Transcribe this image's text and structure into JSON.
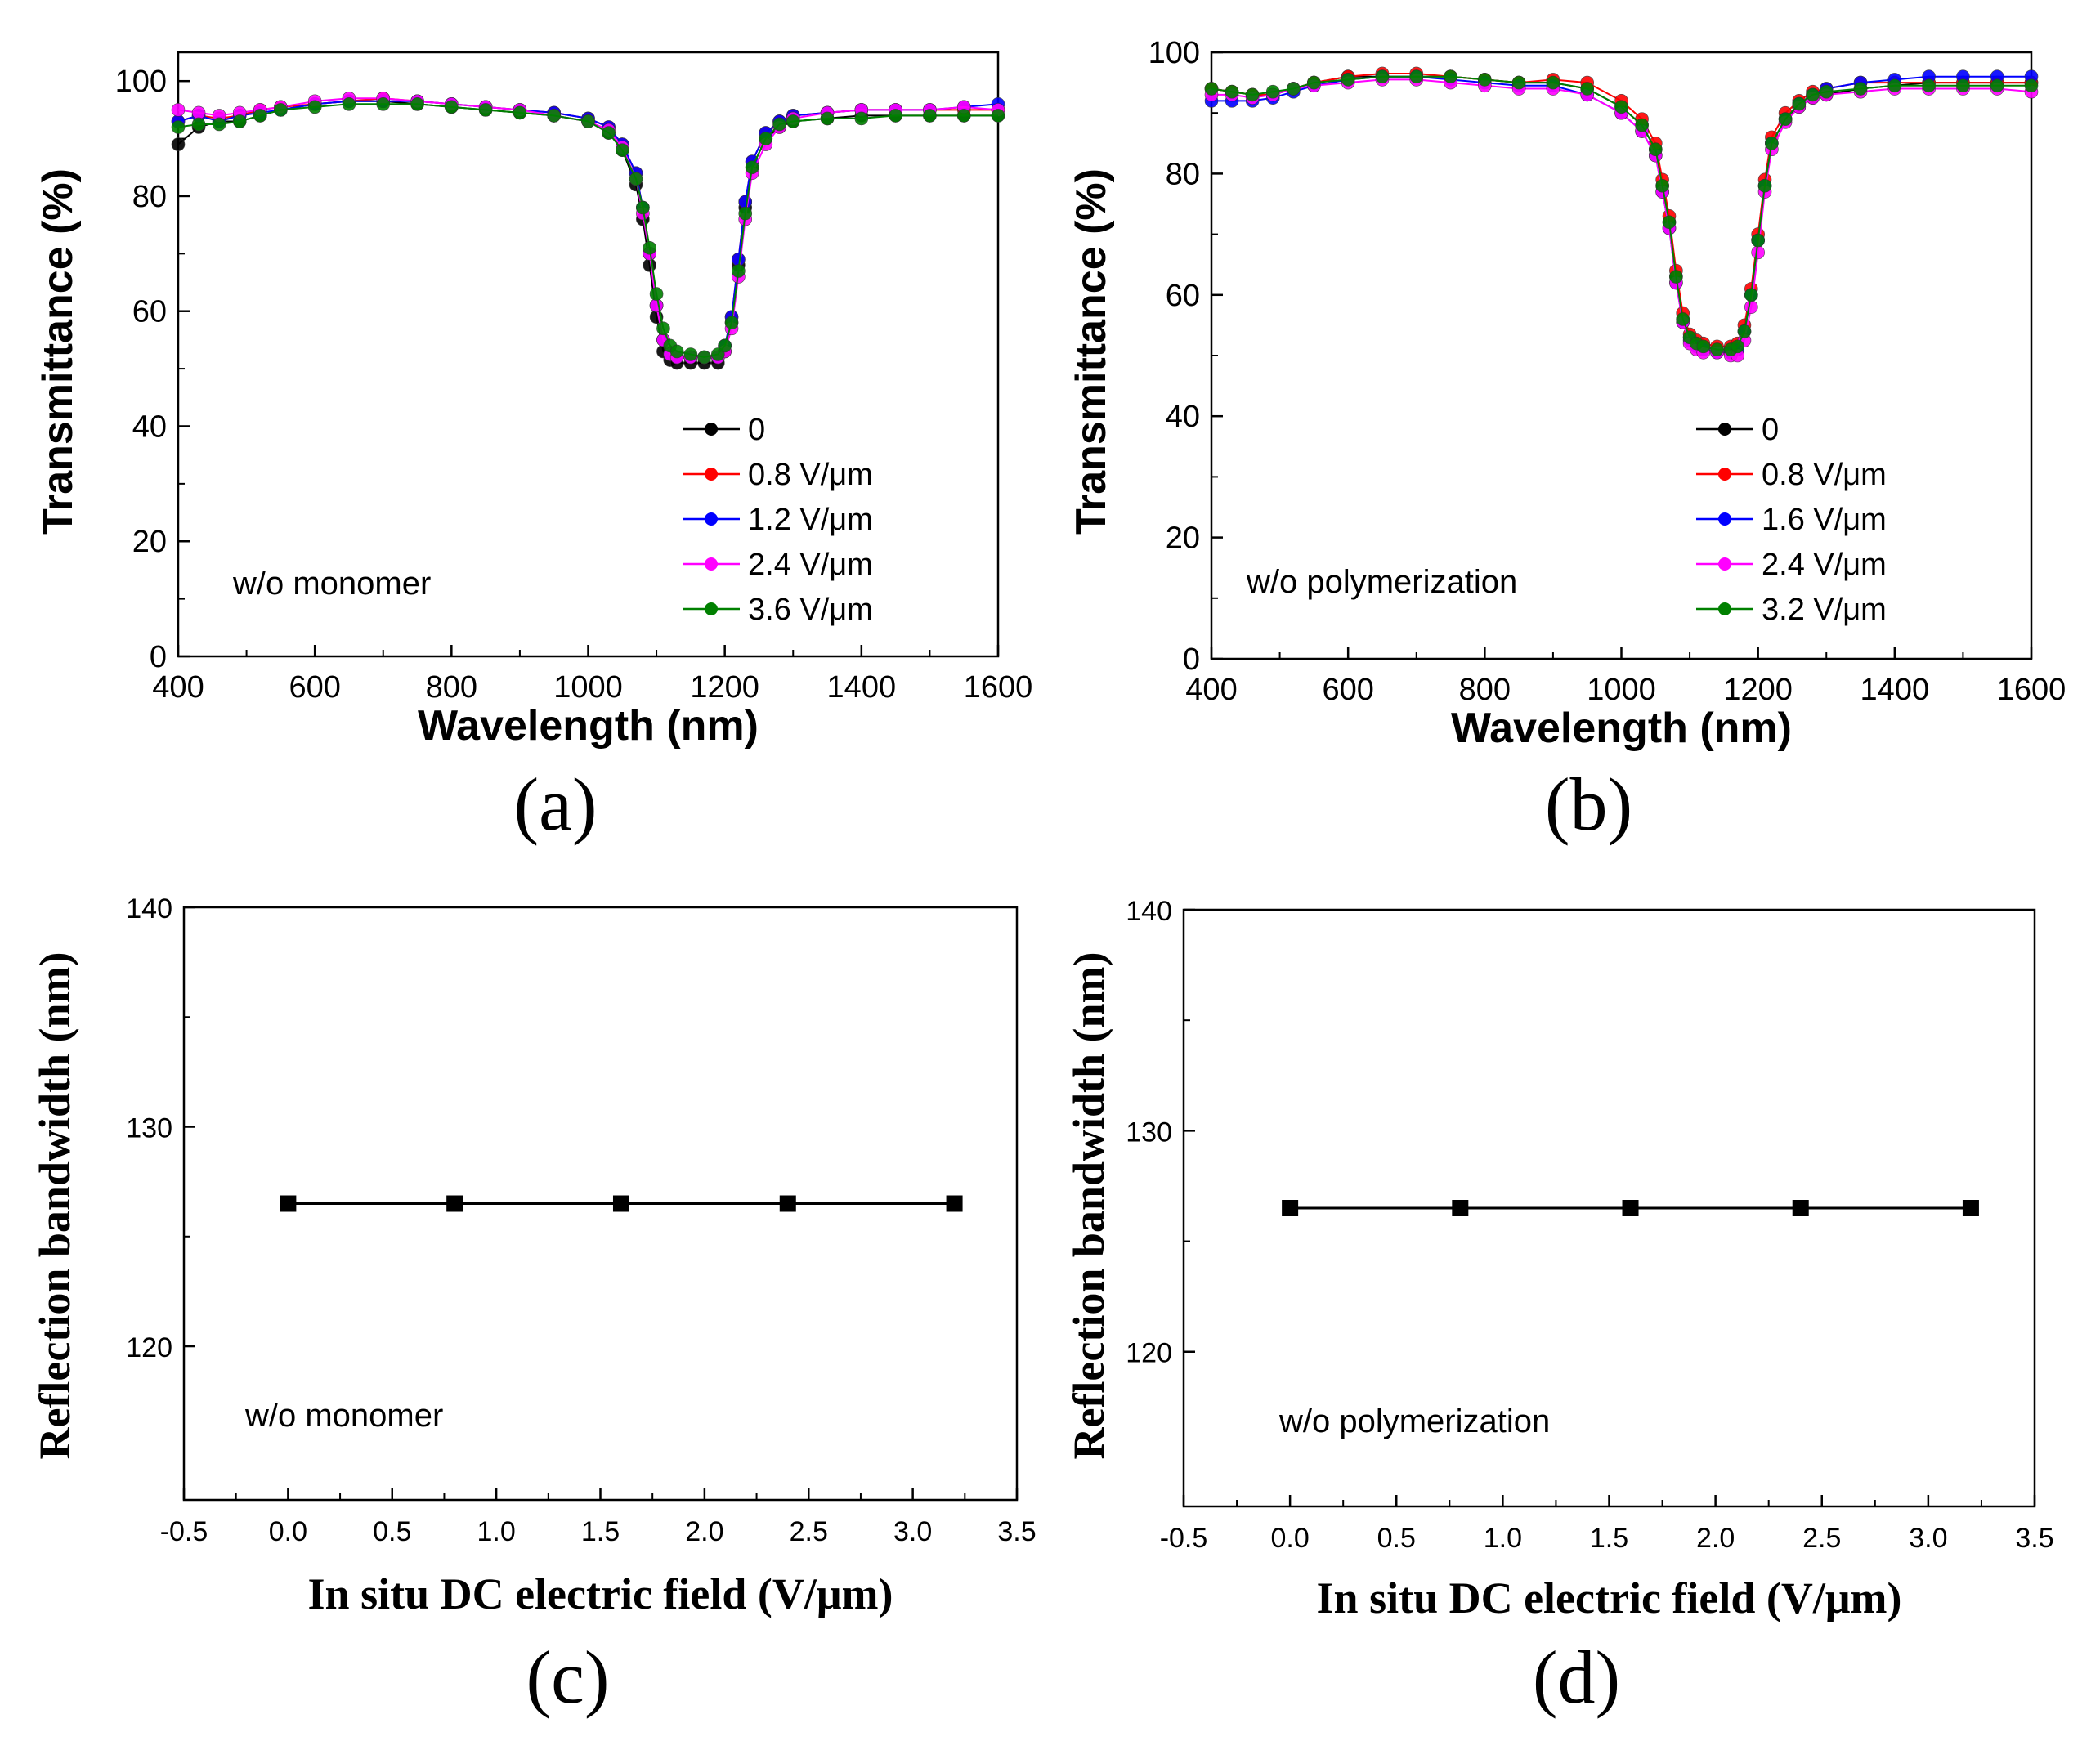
{
  "colors": {
    "axis": "#000000",
    "series": [
      "#000000",
      "#ff0000",
      "#0000ff",
      "#ff00ff",
      "#008000"
    ]
  },
  "chart_data": [
    {
      "id": "a",
      "type": "line",
      "panel_label": "(a)",
      "xlabel": "Wavelength (nm)",
      "ylabel": "Transmittance (%)",
      "xlim": [
        400,
        1600
      ],
      "ylim": [
        0,
        105
      ],
      "xticks": [
        400,
        600,
        800,
        1000,
        1200,
        1400,
        1600
      ],
      "yticks": [
        0,
        20,
        40,
        60,
        80,
        100
      ],
      "tick_labels_x": [
        "400",
        "600",
        "800",
        "1000",
        "1200",
        "1400",
        "1600"
      ],
      "tick_labels_y": [
        "0",
        "20",
        "40",
        "60",
        "80",
        "100"
      ],
      "annotation": "w/o monomer",
      "legend_position": "lower-right",
      "marker": "circle",
      "x": [
        400,
        430,
        460,
        490,
        520,
        550,
        600,
        650,
        700,
        750,
        800,
        850,
        900,
        950,
        1000,
        1030,
        1050,
        1070,
        1080,
        1090,
        1100,
        1110,
        1120,
        1130,
        1150,
        1170,
        1190,
        1200,
        1210,
        1220,
        1230,
        1240,
        1260,
        1280,
        1300,
        1350,
        1400,
        1450,
        1500,
        1550,
        1600
      ],
      "series": [
        {
          "name": "0",
          "values": [
            89,
            92,
            93,
            93,
            94,
            95,
            96,
            96.5,
            96.5,
            96,
            95.5,
            95,
            94.5,
            94,
            93,
            91,
            88,
            82,
            76,
            68,
            59,
            53,
            51.5,
            51,
            51,
            51,
            51,
            53,
            58,
            68,
            78,
            85,
            90,
            92,
            93,
            93.5,
            94,
            94,
            94,
            94,
            94
          ]
        },
        {
          "name": "0.8 V/μm",
          "values": [
            93,
            94,
            93.5,
            94,
            95,
            95.5,
            96,
            96.5,
            97,
            96.5,
            96,
            95.5,
            95,
            94.5,
            93.5,
            92,
            89,
            84,
            78,
            70,
            61,
            55,
            52.5,
            52,
            52,
            52,
            52,
            54,
            59,
            69,
            79,
            86,
            91,
            93,
            94,
            94.5,
            95,
            95,
            95,
            95,
            95
          ]
        },
        {
          "name": "1.2 V/μm",
          "values": [
            93,
            94,
            93,
            94,
            94.5,
            95,
            96,
            96.5,
            96.5,
            96.5,
            96,
            95.5,
            95,
            94.5,
            93.5,
            92,
            89,
            84,
            78,
            70,
            61,
            55,
            52.5,
            52,
            52,
            52,
            52,
            54,
            59,
            69,
            79,
            86,
            91,
            93,
            94,
            94.5,
            95,
            95,
            95,
            95.5,
            96
          ]
        },
        {
          "name": "2.4 V/μm",
          "values": [
            95,
            94.5,
            94,
            94.5,
            95,
            95.5,
            96.5,
            97,
            97,
            96.5,
            96,
            95.5,
            95,
            94,
            93,
            91.5,
            88.5,
            83,
            77,
            70,
            61,
            55,
            52.5,
            52,
            52,
            52,
            52,
            53,
            57,
            66,
            76,
            84,
            89,
            92,
            93.5,
            94.5,
            95,
            95,
            95,
            95.5,
            95
          ]
        },
        {
          "name": "3.6 V/μm",
          "values": [
            92,
            92.5,
            92.5,
            93,
            94,
            95,
            95.5,
            96,
            96,
            96,
            95.5,
            95,
            94.5,
            94,
            93,
            91,
            88,
            83,
            78,
            71,
            63,
            57,
            54,
            53,
            52.5,
            52,
            52.5,
            54,
            58,
            67,
            77,
            85,
            90,
            92.5,
            93,
            93.5,
            93.5,
            94,
            94,
            94,
            94
          ]
        }
      ]
    },
    {
      "id": "b",
      "type": "line",
      "panel_label": "(b)",
      "xlabel": "Wavelength (nm)",
      "ylabel": "Transmittance (%)",
      "xlim": [
        400,
        1600
      ],
      "ylim": [
        0,
        100
      ],
      "xticks": [
        400,
        600,
        800,
        1000,
        1200,
        1400,
        1600
      ],
      "yticks": [
        0,
        20,
        40,
        60,
        80,
        100
      ],
      "tick_labels_x": [
        "400",
        "600",
        "800",
        "1000",
        "1200",
        "1400",
        "1600"
      ],
      "tick_labels_y": [
        "0",
        "20",
        "40",
        "60",
        "80",
        "100"
      ],
      "annotation": "w/o polymerization",
      "legend_position": "lower-right",
      "marker": "circle",
      "x": [
        400,
        430,
        460,
        490,
        520,
        550,
        600,
        650,
        700,
        750,
        800,
        850,
        900,
        950,
        1000,
        1030,
        1050,
        1060,
        1070,
        1080,
        1090,
        1100,
        1110,
        1120,
        1140,
        1160,
        1170,
        1180,
        1190,
        1200,
        1210,
        1220,
        1240,
        1260,
        1280,
        1300,
        1350,
        1400,
        1450,
        1500,
        1550,
        1600
      ],
      "series": [
        {
          "name": "0",
          "values": [
            94,
            93.5,
            93,
            93,
            94,
            95,
            96,
            96,
            96,
            96,
            95.5,
            95,
            95,
            94,
            91,
            88,
            84,
            78,
            72,
            63,
            56,
            53,
            52,
            51.5,
            51,
            51,
            51.5,
            54,
            60,
            69,
            78,
            85,
            89,
            91,
            92.5,
            93,
            94,
            94.5,
            95,
            95,
            95,
            95
          ]
        },
        {
          "name": "0.8 V/μm",
          "values": [
            94,
            93.5,
            93,
            93,
            94,
            95,
            96,
            96.5,
            96.5,
            96,
            95.5,
            95,
            95.5,
            95,
            92,
            89,
            85,
            79,
            73,
            64,
            57,
            53.5,
            52.5,
            52,
            51.5,
            51.5,
            52,
            55,
            61,
            70,
            79,
            86,
            90,
            92,
            93.5,
            94,
            95,
            95,
            95,
            95,
            95,
            95
          ]
        },
        {
          "name": "1.6 V/μm",
          "values": [
            92,
            92,
            92,
            92.5,
            93.5,
            94.5,
            95.5,
            96,
            96,
            95.5,
            95,
            94.5,
            94.5,
            93,
            90,
            87,
            83,
            77,
            71,
            62,
            55.5,
            52.5,
            51.5,
            51,
            50.5,
            50.5,
            51,
            54,
            60,
            69,
            78,
            85,
            89,
            91.5,
            93,
            94,
            95,
            95.5,
            96,
            96,
            96,
            96
          ]
        },
        {
          "name": "2.4 V/μm",
          "values": [
            93,
            93,
            92.5,
            93,
            94,
            94.5,
            95,
            95.5,
            95.5,
            95,
            94.5,
            94,
            94,
            93,
            90,
            87,
            83,
            77,
            71,
            62,
            55.5,
            52,
            51,
            50.5,
            50.5,
            50,
            50,
            52.5,
            58,
            67,
            77,
            84,
            88.5,
            91,
            92.5,
            93,
            93.5,
            94,
            94,
            94,
            94,
            93.5
          ]
        },
        {
          "name": "3.2 V/μm",
          "values": [
            94,
            93.5,
            93,
            93.5,
            94,
            95,
            95.5,
            96,
            96,
            96,
            95.5,
            95,
            95,
            94,
            91,
            88,
            84,
            78,
            72,
            63,
            56,
            53,
            52,
            51.5,
            51,
            51,
            51.5,
            54,
            60,
            69,
            78,
            85,
            89,
            91.5,
            93,
            93.5,
            94,
            94.5,
            94.5,
            94.5,
            94.5,
            94.5
          ]
        }
      ]
    },
    {
      "id": "c",
      "type": "line",
      "panel_label": "(c)",
      "xlabel": "In situ DC electric field (V/μm)",
      "ylabel": "Reflection bandwidth (nm)",
      "xlim": [
        -0.5,
        3.5
      ],
      "ylim": [
        113,
        140
      ],
      "xticks": [
        -0.5,
        0.0,
        0.5,
        1.0,
        1.5,
        2.0,
        2.5,
        3.0,
        3.5
      ],
      "yticks": [
        120,
        130,
        140
      ],
      "tick_labels_x": [
        "-0.5",
        "0.0",
        "0.5",
        "1.0",
        "1.5",
        "2.0",
        "2.5",
        "3.0",
        "3.5"
      ],
      "tick_labels_y": [
        "120",
        "130",
        "140"
      ],
      "annotation": "w/o monomer",
      "marker": "square",
      "x": [
        0.0,
        0.8,
        1.6,
        2.4,
        3.2
      ],
      "series": [
        {
          "name": "Reflection bandwidth",
          "values": [
            126.5,
            126.5,
            126.5,
            126.5,
            126.5
          ]
        }
      ]
    },
    {
      "id": "d",
      "type": "line",
      "panel_label": "(d)",
      "xlabel": "In situ DC electric field (V/μm)",
      "ylabel": "Reflection bandwidth (nm)",
      "xlim": [
        -0.5,
        3.5
      ],
      "ylim": [
        113,
        140
      ],
      "xticks": [
        -0.5,
        0.0,
        0.5,
        1.0,
        1.5,
        2.0,
        2.5,
        3.0,
        3.5
      ],
      "yticks": [
        120,
        130,
        140
      ],
      "tick_labels_x": [
        "-0.5",
        "0.0",
        "0.5",
        "1.0",
        "1.5",
        "2.0",
        "2.5",
        "3.0",
        "3.5"
      ],
      "tick_labels_y": [
        "120",
        "130",
        "140"
      ],
      "annotation": "w/o polymerization",
      "marker": "square",
      "x": [
        0.0,
        0.8,
        1.6,
        2.4,
        3.2
      ],
      "series": [
        {
          "name": "Reflection bandwidth",
          "values": [
            126.5,
            126.5,
            126.5,
            126.5,
            126.5
          ]
        }
      ]
    }
  ]
}
